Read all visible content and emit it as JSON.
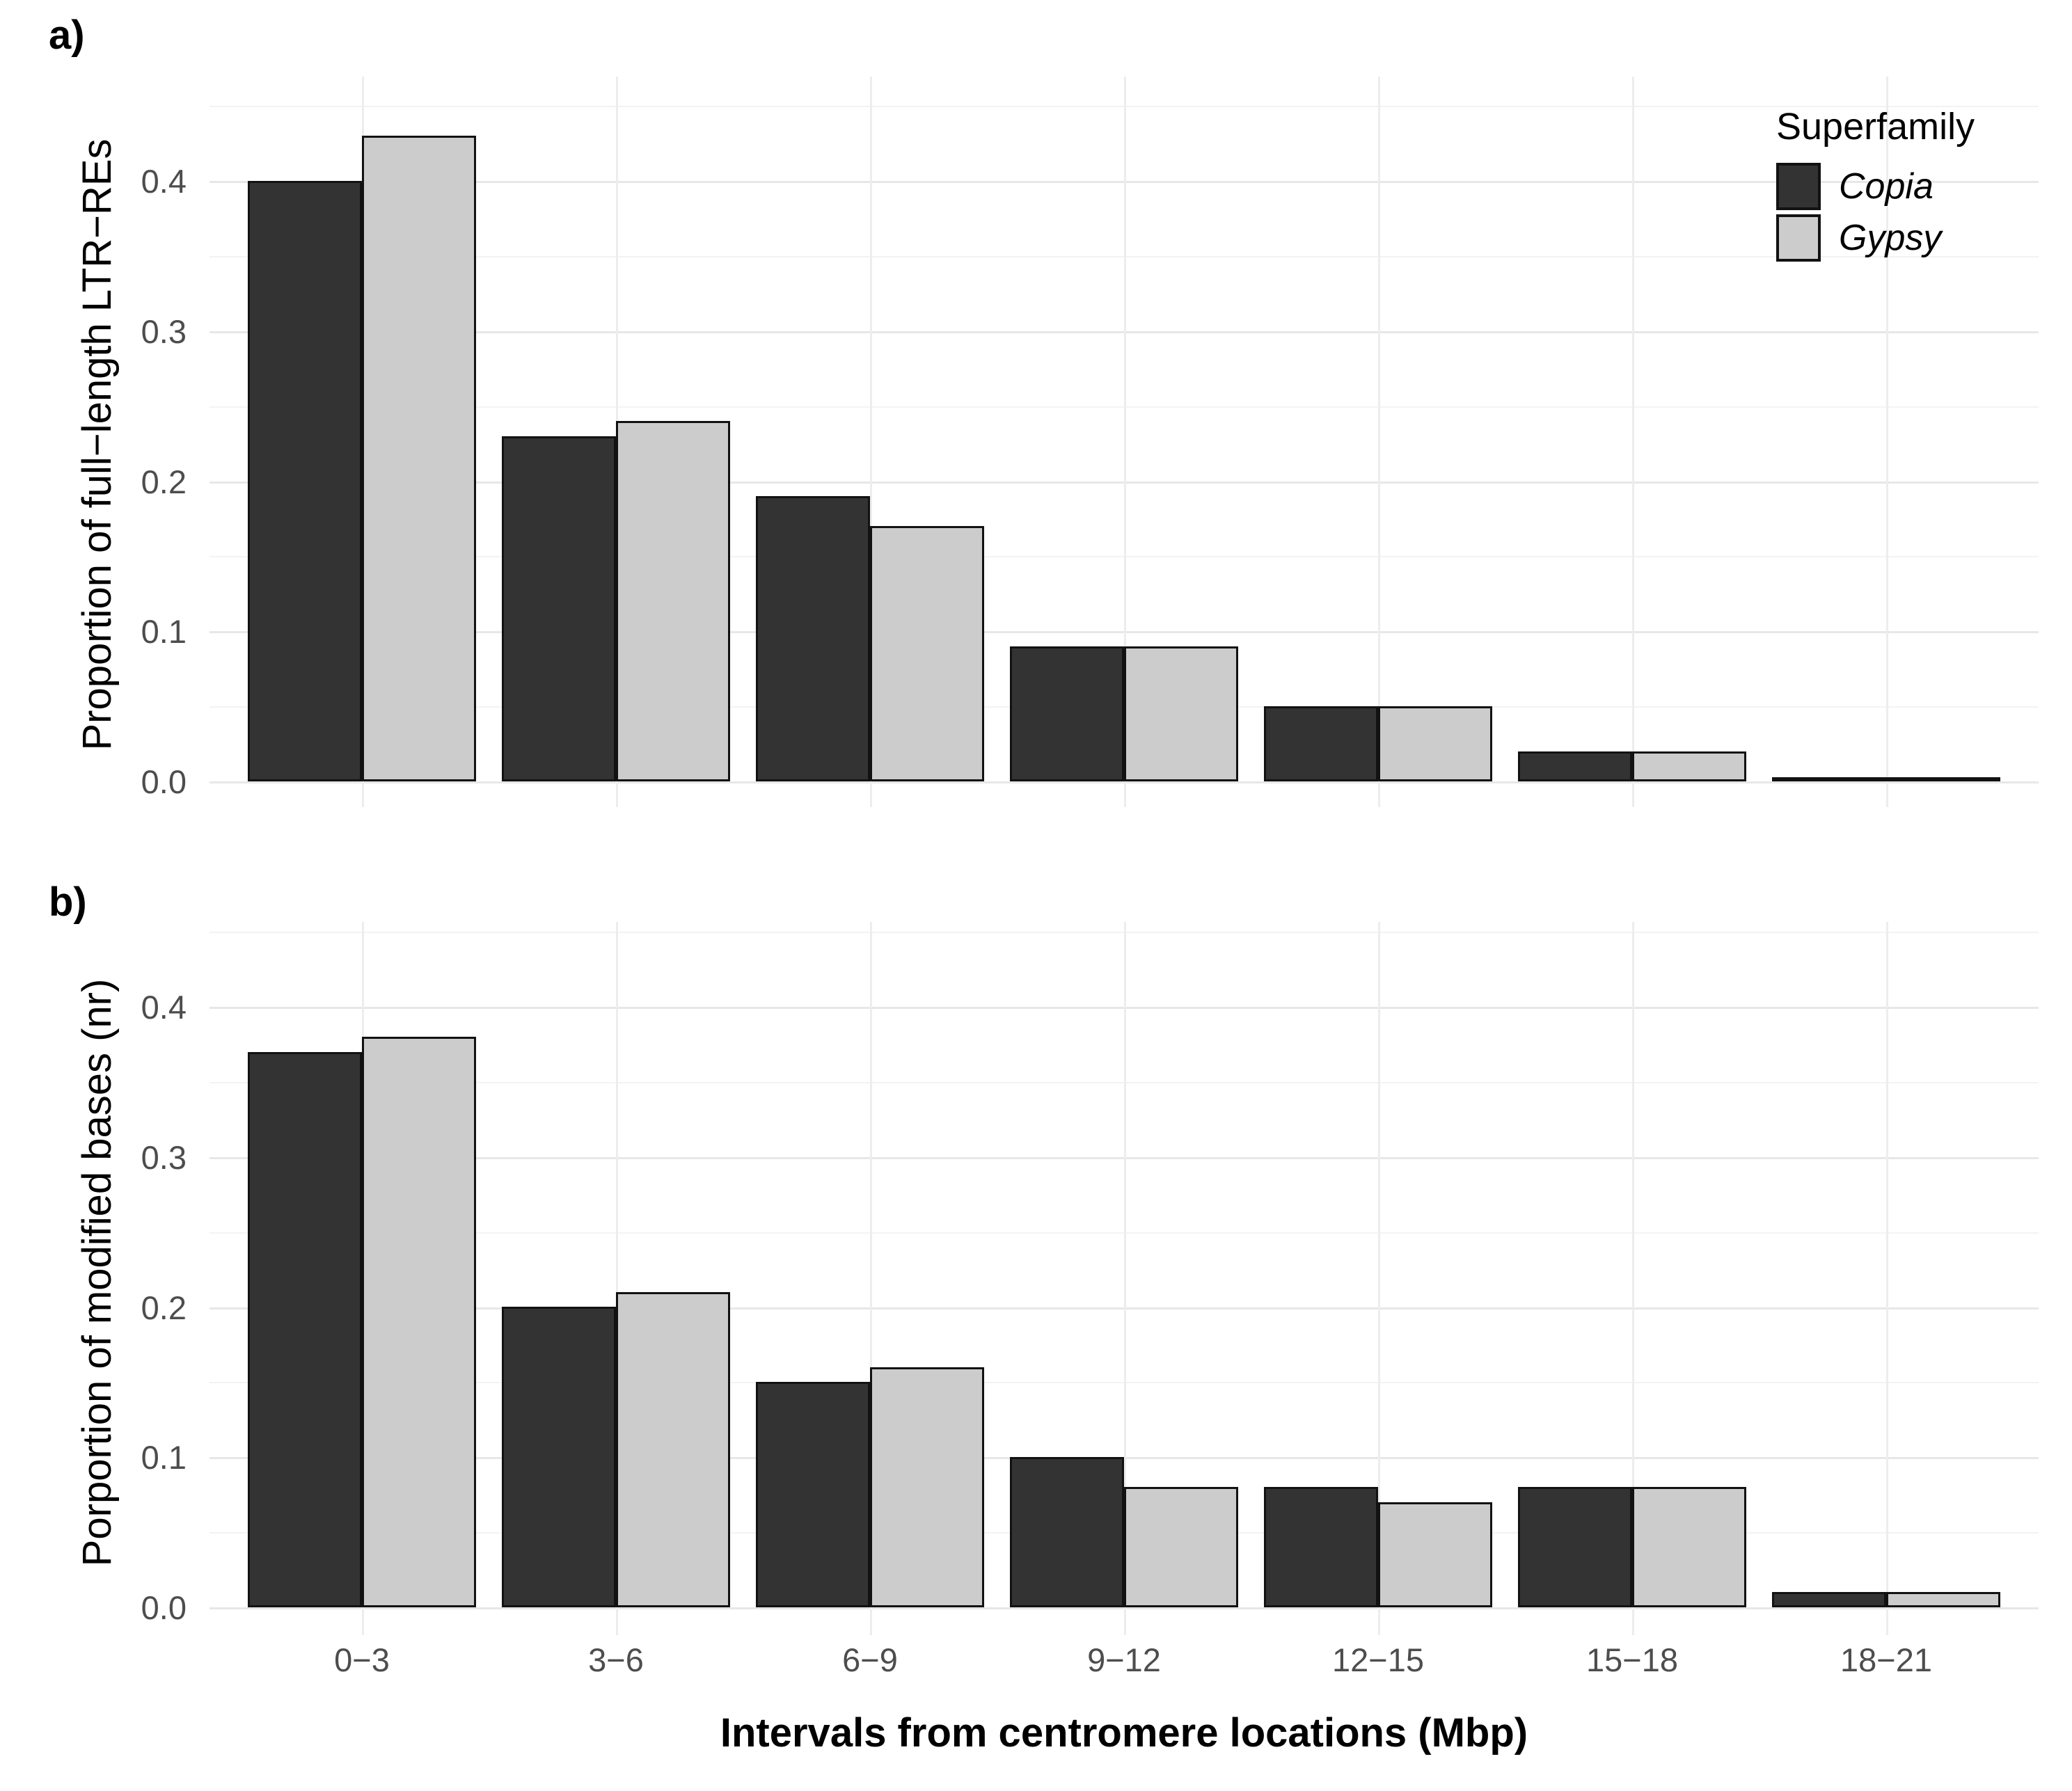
{
  "title_tags": {
    "a": "a)",
    "b": "b)"
  },
  "axes": {
    "x_title": "Intervals from centromere locations (Mbp)",
    "x_ticklabels": [
      "0−3",
      "3−6",
      "6−9",
      "9−12",
      "12−15",
      "15−18",
      "18−21"
    ],
    "y_ticklabels": [
      "0.0",
      "0.1",
      "0.2",
      "0.3",
      "0.4"
    ],
    "panel_a_y_title": "Proportion of full−length LTR−REs",
    "panel_b_y_title": "Porportion of modified bases (nr)"
  },
  "legend": {
    "title": "Superfamily",
    "entries": [
      {
        "label": "Copia",
        "color_key": "copia"
      },
      {
        "label": "Gypsy",
        "color_key": "gypsy"
      }
    ],
    "position": "top-right"
  },
  "colors": {
    "copia": "#333333",
    "gypsy": "#cccccc",
    "bar_outline": "#121212",
    "grid_major": "#e7e7e7",
    "grid_minor": "#f3f3f3",
    "tick_text": "#4d4d4d",
    "background": "#ffffff"
  },
  "chart_data": [
    {
      "panel": "a",
      "type": "bar",
      "grouping": "dodged",
      "categories": [
        "0−3",
        "3−6",
        "6−9",
        "9−12",
        "12−15",
        "15−18",
        "18−21"
      ],
      "series": [
        {
          "name": "Copia",
          "values": [
            0.4,
            0.23,
            0.19,
            0.09,
            0.05,
            0.02,
            0.0
          ]
        },
        {
          "name": "Gypsy",
          "values": [
            0.43,
            0.24,
            0.17,
            0.09,
            0.05,
            0.02,
            0.0
          ]
        }
      ],
      "xlabel": "Intervals from centromere locations (Mbp)",
      "ylabel": "Proportion of full−length LTR−REs",
      "ylim": [
        0,
        0.45
      ],
      "yticks": [
        0.0,
        0.1,
        0.2,
        0.3,
        0.4
      ],
      "minor_ticks_every": 0.05,
      "grid": true,
      "legend_position": "top-right"
    },
    {
      "panel": "b",
      "type": "bar",
      "grouping": "dodged",
      "categories": [
        "0−3",
        "3−6",
        "6−9",
        "9−12",
        "12−15",
        "15−18",
        "18−21"
      ],
      "series": [
        {
          "name": "Copia",
          "values": [
            0.37,
            0.2,
            0.15,
            0.1,
            0.08,
            0.08,
            0.01
          ]
        },
        {
          "name": "Gypsy",
          "values": [
            0.38,
            0.21,
            0.16,
            0.08,
            0.07,
            0.08,
            0.01
          ]
        }
      ],
      "xlabel": "Intervals from centromere locations (Mbp)",
      "ylabel": "Porportion of modified bases (nr)",
      "ylim": [
        0,
        0.45
      ],
      "yticks": [
        0.0,
        0.1,
        0.2,
        0.3,
        0.4
      ],
      "minor_ticks_every": 0.05,
      "grid": true,
      "legend_position": "none"
    }
  ]
}
